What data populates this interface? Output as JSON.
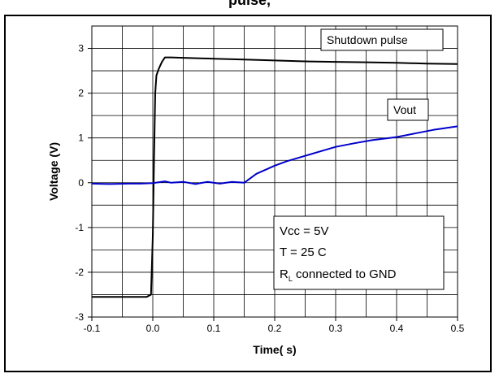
{
  "header": {
    "title_fragment": "pulse, "
  },
  "chart_data": {
    "type": "line",
    "xlabel": "Time( s)",
    "ylabel": "Voltage (V)",
    "xlim": [
      -0.1,
      0.5
    ],
    "ylim": [
      -3,
      3.5
    ],
    "xticks": [
      -0.1,
      0.0,
      0.1,
      0.2,
      0.3,
      0.4,
      0.5
    ],
    "xtick_labels": [
      "-0.1",
      "0.0",
      "0.1",
      "0.2",
      "0.3",
      "0.4",
      "0.5"
    ],
    "yticks": [
      -3,
      -2,
      -1,
      0,
      1,
      2,
      3
    ],
    "ytick_labels": [
      "-3",
      "-2",
      "-1",
      "0",
      "1",
      "2",
      "3"
    ],
    "grid": true,
    "series": [
      {
        "name": "Shutdown pulse",
        "color": "#000000",
        "x": [
          -0.1,
          -0.01,
          -0.003,
          0.0,
          0.002,
          0.004,
          0.006,
          0.01,
          0.015,
          0.02,
          0.03,
          0.05,
          0.1,
          0.15,
          0.2,
          0.25,
          0.3,
          0.35,
          0.4,
          0.45,
          0.5
        ],
        "y": [
          -2.55,
          -2.55,
          -2.5,
          -1.2,
          0.5,
          2.0,
          2.4,
          2.55,
          2.7,
          2.8,
          2.8,
          2.79,
          2.77,
          2.75,
          2.73,
          2.71,
          2.7,
          2.69,
          2.68,
          2.66,
          2.65
        ]
      },
      {
        "name": "Vout",
        "color": "#0000cc",
        "x": [
          -0.1,
          -0.07,
          -0.04,
          -0.02,
          0.0,
          0.02,
          0.03,
          0.05,
          0.07,
          0.09,
          0.11,
          0.13,
          0.15,
          0.17,
          0.2,
          0.22,
          0.25,
          0.28,
          0.3,
          0.33,
          0.36,
          0.4,
          0.43,
          0.46,
          0.5
        ],
        "y": [
          -0.02,
          -0.03,
          -0.02,
          -0.02,
          -0.01,
          0.03,
          0.0,
          0.02,
          -0.03,
          0.02,
          -0.02,
          0.02,
          0.0,
          0.2,
          0.38,
          0.48,
          0.6,
          0.72,
          0.8,
          0.88,
          0.95,
          1.02,
          1.1,
          1.18,
          1.26
        ]
      }
    ],
    "legend_labels": [
      {
        "text": "Shutdown pulse",
        "placement": "top-right"
      },
      {
        "text": "Vout",
        "placement": "right"
      }
    ],
    "annotation": {
      "placement": "bottom-right",
      "lines": [
        {
          "main": "Vcc = 5V",
          "sub": ""
        },
        {
          "main": "T = 25  C",
          "sub": ""
        },
        {
          "main": "R",
          "sub": "L",
          "rest": " connected to GND"
        }
      ]
    }
  }
}
